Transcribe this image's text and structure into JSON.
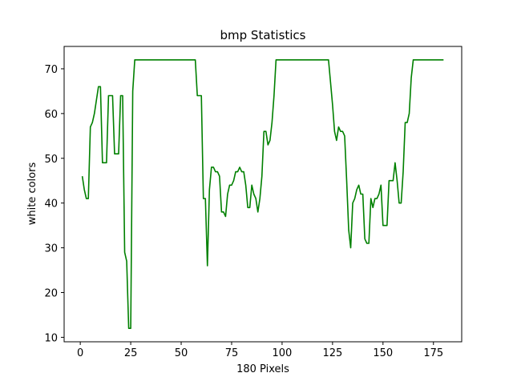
{
  "chart_data": {
    "type": "line",
    "title": "bmp Statistics",
    "xlabel": "180 Pixels",
    "ylabel": "white colors",
    "xlim": [
      -8,
      189
    ],
    "ylim": [
      9,
      75
    ],
    "xticks": [
      0,
      25,
      50,
      75,
      100,
      125,
      150,
      175
    ],
    "yticks": [
      10,
      20,
      30,
      40,
      50,
      60,
      70
    ],
    "grid": false,
    "series_color": "#008000",
    "series": [
      {
        "x": [
          1,
          2,
          3,
          4,
          5,
          6,
          7,
          8,
          9,
          10,
          11,
          12,
          13,
          14,
          15,
          16,
          17,
          18,
          19,
          20,
          21,
          22,
          23,
          24,
          25,
          26,
          27,
          28,
          30,
          35,
          40,
          45,
          50,
          55,
          57,
          58,
          59,
          60,
          61,
          62,
          63,
          64,
          65,
          66,
          67,
          68,
          69,
          70,
          71,
          72,
          73,
          74,
          75,
          76,
          77,
          78,
          79,
          80,
          81,
          82,
          83,
          84,
          85,
          86,
          87,
          88,
          89,
          90,
          91,
          92,
          93,
          94,
          95,
          96,
          97,
          98,
          100,
          105,
          110,
          115,
          120,
          123,
          124,
          125,
          126,
          127,
          128,
          129,
          130,
          131,
          132,
          133,
          134,
          135,
          136,
          137,
          138,
          139,
          140,
          141,
          142,
          143,
          144,
          145,
          146,
          147,
          148,
          149,
          150,
          151,
          152,
          153,
          154,
          155,
          156,
          157,
          158,
          159,
          160,
          161,
          162,
          163,
          164,
          165,
          166,
          167,
          170,
          175,
          180
        ],
        "y": [
          46,
          43,
          41,
          41,
          57,
          58,
          60,
          63,
          66,
          66,
          49,
          49,
          49,
          64,
          64,
          64,
          51,
          51,
          51,
          64,
          64,
          29,
          27,
          12,
          12,
          65,
          72,
          72,
          72,
          72,
          72,
          72,
          72,
          72,
          72,
          64,
          64,
          64,
          41,
          41,
          26,
          43,
          48,
          48,
          47,
          47,
          46,
          38,
          38,
          37,
          42,
          44,
          44,
          45,
          47,
          47,
          48,
          47,
          47,
          44,
          39,
          39,
          44,
          42,
          41,
          38,
          41,
          46,
          56,
          56,
          53,
          54,
          58,
          64,
          72,
          72,
          72,
          72,
          72,
          72,
          72,
          72,
          67,
          62,
          56,
          54,
          57,
          56,
          56,
          55,
          45,
          34,
          30,
          40,
          41,
          43,
          44,
          42,
          42,
          32,
          31,
          31,
          41,
          39,
          41,
          41,
          42,
          44,
          35,
          35,
          35,
          45,
          45,
          45,
          49,
          45,
          40,
          40,
          47,
          58,
          58,
          60,
          68,
          72,
          72,
          72,
          72,
          72,
          72
        ]
      }
    ]
  }
}
